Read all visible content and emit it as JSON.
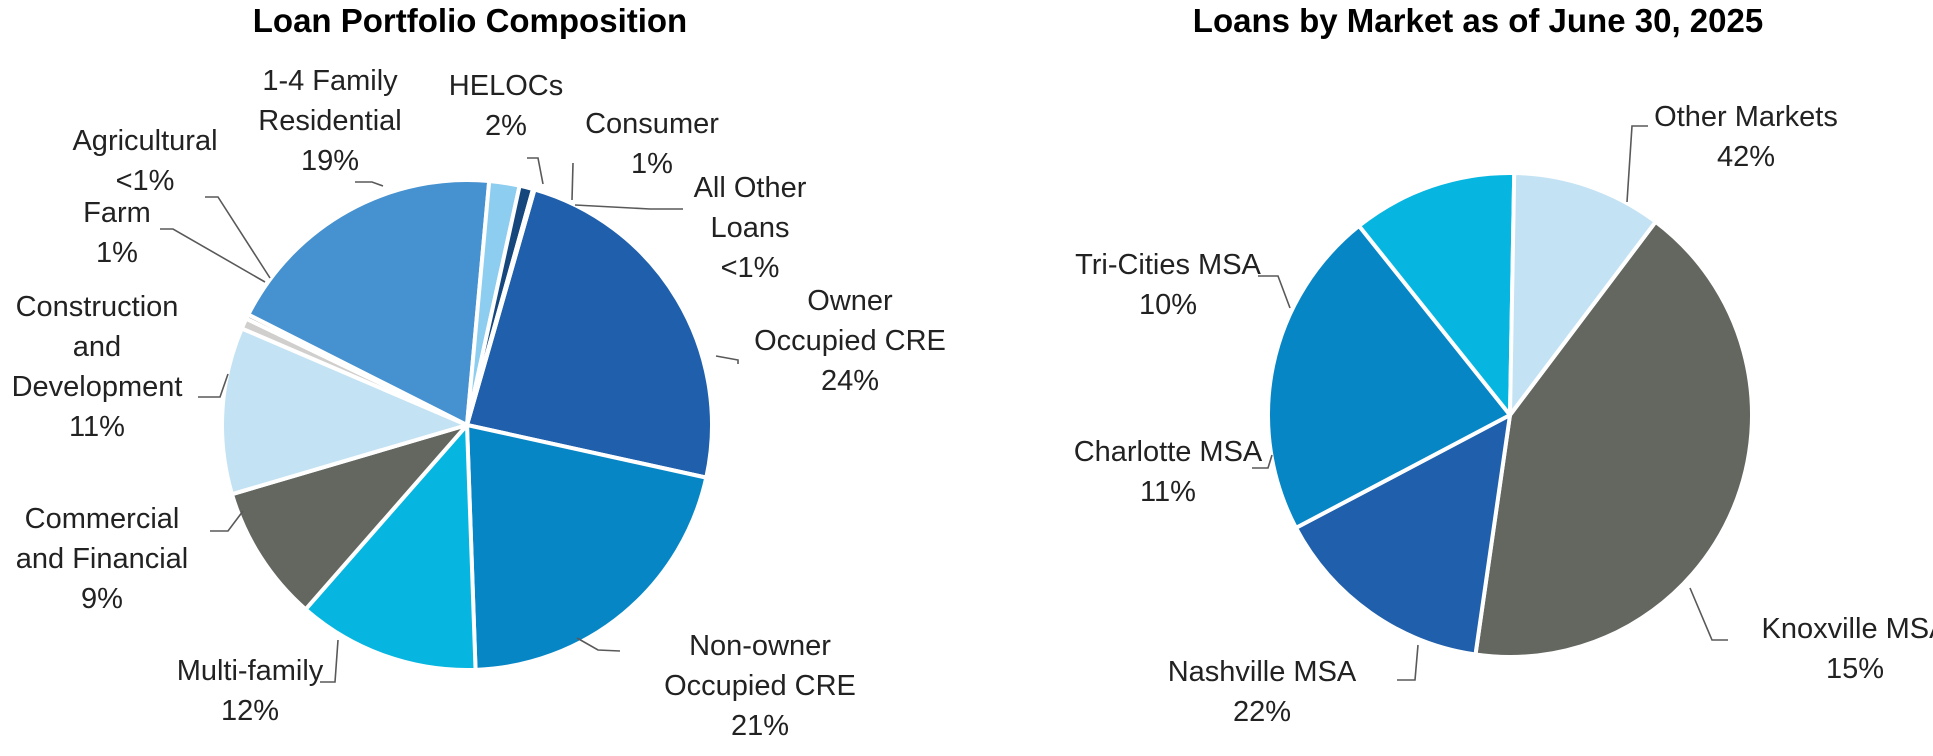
{
  "chart_data": [
    {
      "type": "pie",
      "title": "Loan Portfolio Composition",
      "slices": [
        {
          "name": "Owner Occupied CRE",
          "label_lines": [
            "Owner",
            "Occupied CRE",
            "24%"
          ],
          "value": 24,
          "color": "#1F5FAB"
        },
        {
          "name": "Non-owner Occupied CRE",
          "label_lines": [
            "Non-owner",
            "Occupied CRE",
            "21%"
          ],
          "value": 21,
          "color": "#0786C6"
        },
        {
          "name": "Multi-family",
          "label_lines": [
            "Multi-family",
            "12%"
          ],
          "value": 12,
          "color": "#06B6E0"
        },
        {
          "name": "Commercial and Financial",
          "label_lines": [
            "Commercial",
            "and Financial",
            "9%"
          ],
          "value": 9,
          "color": "#636760"
        },
        {
          "name": "Construction and Development",
          "label_lines": [
            "Construction",
            "and",
            "Development",
            "11%"
          ],
          "value": 11,
          "color": "#C3E2F3"
        },
        {
          "name": "Farm",
          "label_lines": [
            "Farm",
            "1%"
          ],
          "value": 0.7,
          "color": "#D0CFCD"
        },
        {
          "name": "Agricultural",
          "label_lines": [
            "Agricultural",
            "<1%"
          ],
          "value": 0.3,
          "color": "#B4B6B2"
        },
        {
          "name": "1-4 Family Residential",
          "label_lines": [
            "1-4 Family",
            "Residential",
            "19%"
          ],
          "value": 19,
          "color": "#4691CF"
        },
        {
          "name": "HELOCs",
          "label_lines": [
            "HELOCs",
            "2%"
          ],
          "value": 2,
          "color": "#8DCDEF"
        },
        {
          "name": "Consumer",
          "label_lines": [
            "Consumer",
            "1%"
          ],
          "value": 0.9,
          "color": "#15467C"
        },
        {
          "name": "All Other Loans",
          "label_lines": [
            "All Other",
            "Loans",
            "<1%"
          ],
          "value": 0.1,
          "color": "#4A4D48"
        }
      ]
    },
    {
      "type": "pie",
      "title": "Loans by Market as of June 30, 2025",
      "slices": [
        {
          "name": "Other Markets",
          "label_lines": [
            "Other Markets",
            "42%"
          ],
          "value": 42,
          "color": "#636760"
        },
        {
          "name": "Knoxville MSA",
          "label_lines": [
            "Knoxville MSA",
            "15%"
          ],
          "value": 15,
          "color": "#1F5FAB"
        },
        {
          "name": "Nashville MSA",
          "label_lines": [
            "Nashville MSA",
            "22%"
          ],
          "value": 22,
          "color": "#0786C6"
        },
        {
          "name": "Charlotte MSA",
          "label_lines": [
            "Charlotte MSA",
            "11%"
          ],
          "value": 11,
          "color": "#06B6E0"
        },
        {
          "name": "Tri-Cities MSA",
          "label_lines": [
            "Tri-Cities MSA",
            "10%"
          ],
          "value": 10,
          "color": "#C3E2F3"
        }
      ]
    }
  ]
}
